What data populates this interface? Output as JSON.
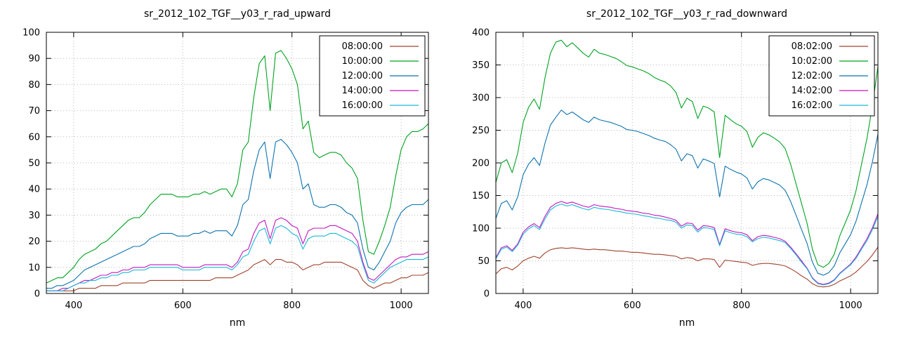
{
  "chart_data": [
    {
      "type": "line",
      "title": "sr_2012_102_TGF__y03_r_rad_upward",
      "xlabel": "nm",
      "xlim": [
        350,
        1050
      ],
      "xticks": [
        400,
        600,
        800,
        1000
      ],
      "ylim": [
        0,
        100
      ],
      "yticks": [
        0,
        10,
        20,
        30,
        40,
        50,
        60,
        70,
        80,
        90,
        100
      ],
      "grid": true,
      "legend_position": "top-right",
      "x": [
        350,
        360,
        370,
        380,
        390,
        400,
        410,
        420,
        430,
        440,
        450,
        460,
        470,
        480,
        490,
        500,
        510,
        520,
        530,
        540,
        550,
        560,
        570,
        580,
        590,
        600,
        610,
        620,
        630,
        640,
        650,
        660,
        670,
        680,
        690,
        700,
        710,
        720,
        730,
        740,
        750,
        760,
        770,
        780,
        790,
        800,
        810,
        820,
        830,
        840,
        850,
        860,
        870,
        880,
        890,
        900,
        910,
        920,
        930,
        940,
        950,
        960,
        970,
        980,
        990,
        1000,
        1010,
        1020,
        1030,
        1040,
        1050
      ],
      "series": [
        {
          "name": "08:00:00",
          "color": "#a0432d",
          "values": [
            1,
            1,
            1,
            1,
            1,
            1,
            2,
            2,
            2,
            2,
            3,
            3,
            3,
            3,
            4,
            4,
            4,
            4,
            4,
            5,
            5,
            5,
            5,
            5,
            5,
            5,
            5,
            5,
            5,
            5,
            5,
            6,
            6,
            6,
            6,
            7,
            8,
            9,
            11,
            12,
            13,
            11,
            13,
            13,
            12,
            12,
            11,
            9,
            10,
            11,
            11,
            12,
            12,
            12,
            12,
            11,
            10,
            9,
            5,
            3,
            2,
            3,
            4,
            4,
            5,
            6,
            6,
            7,
            7,
            7,
            8
          ]
        },
        {
          "name": "10:00:00",
          "color": "#00a321",
          "values": [
            4,
            5,
            6,
            6,
            8,
            10,
            13,
            15,
            16,
            17,
            19,
            20,
            22,
            24,
            26,
            28,
            29,
            29,
            31,
            34,
            36,
            38,
            38,
            38,
            37,
            37,
            37,
            38,
            38,
            39,
            38,
            39,
            40,
            40,
            37,
            42,
            55,
            58,
            75,
            88,
            91,
            70,
            92,
            93,
            90,
            86,
            80,
            63,
            66,
            54,
            52,
            53,
            54,
            54,
            53,
            50,
            48,
            44,
            28,
            16,
            15,
            20,
            26,
            33,
            45,
            55,
            60,
            62,
            62,
            63,
            65
          ]
        },
        {
          "name": "12:00:00",
          "color": "#0d73ad",
          "values": [
            2,
            2,
            3,
            3,
            4,
            5,
            7,
            9,
            10,
            11,
            12,
            13,
            14,
            15,
            16,
            17,
            18,
            18,
            19,
            21,
            22,
            23,
            23,
            23,
            22,
            22,
            22,
            23,
            23,
            24,
            23,
            24,
            24,
            24,
            22,
            26,
            34,
            36,
            47,
            55,
            58,
            44,
            58,
            59,
            57,
            54,
            50,
            40,
            42,
            34,
            33,
            33,
            34,
            34,
            33,
            31,
            30,
            27,
            17,
            10,
            9,
            12,
            16,
            20,
            27,
            31,
            33,
            34,
            34,
            34,
            36
          ]
        },
        {
          "name": "14:00:00",
          "color": "#bf18bf",
          "values": [
            1,
            1,
            1,
            2,
            2,
            3,
            4,
            5,
            5,
            6,
            7,
            7,
            8,
            8,
            9,
            9,
            10,
            10,
            10,
            11,
            11,
            11,
            11,
            11,
            11,
            10,
            10,
            10,
            10,
            11,
            11,
            11,
            11,
            11,
            10,
            12,
            16,
            17,
            23,
            27,
            28,
            21,
            28,
            29,
            28,
            26,
            25,
            19,
            24,
            25,
            25,
            25,
            26,
            26,
            25,
            24,
            23,
            20,
            12,
            6,
            5,
            7,
            9,
            11,
            13,
            14,
            14,
            15,
            15,
            15,
            16
          ]
        },
        {
          "name": "16:00:00",
          "color": "#1ab6d8",
          "values": [
            1,
            1,
            1,
            1,
            2,
            3,
            4,
            4,
            5,
            5,
            6,
            6,
            7,
            7,
            8,
            8,
            9,
            9,
            9,
            10,
            10,
            10,
            10,
            10,
            10,
            9,
            9,
            9,
            9,
            10,
            10,
            10,
            10,
            10,
            9,
            11,
            14,
            15,
            20,
            24,
            25,
            19,
            25,
            26,
            25,
            23,
            22,
            17,
            21,
            22,
            22,
            22,
            23,
            23,
            22,
            21,
            20,
            18,
            11,
            5,
            4,
            6,
            8,
            10,
            11,
            12,
            13,
            13,
            13,
            13,
            14
          ]
        }
      ]
    },
    {
      "type": "line",
      "title": "sr_2012_102_TGF__y03_r_rad_downward",
      "xlabel": "nm",
      "xlim": [
        350,
        1050
      ],
      "xticks": [
        400,
        600,
        800,
        1000
      ],
      "ylim": [
        0,
        400
      ],
      "yticks": [
        0,
        50,
        100,
        150,
        200,
        250,
        300,
        350,
        400
      ],
      "grid": true,
      "legend_position": "top-right",
      "x": [
        350,
        360,
        370,
        380,
        390,
        400,
        410,
        420,
        430,
        440,
        450,
        460,
        470,
        480,
        490,
        500,
        510,
        520,
        530,
        540,
        550,
        560,
        570,
        580,
        590,
        600,
        610,
        620,
        630,
        640,
        650,
        660,
        670,
        680,
        690,
        700,
        710,
        720,
        730,
        740,
        750,
        760,
        770,
        780,
        790,
        800,
        810,
        820,
        830,
        840,
        850,
        860,
        870,
        880,
        890,
        900,
        910,
        920,
        930,
        940,
        950,
        960,
        970,
        980,
        990,
        1000,
        1010,
        1020,
        1030,
        1040,
        1050
      ],
      "series": [
        {
          "name": "08:02:00",
          "color": "#a0432d",
          "values": [
            30,
            38,
            40,
            36,
            42,
            50,
            54,
            57,
            54,
            62,
            67,
            69,
            70,
            69,
            70,
            69,
            68,
            67,
            68,
            67,
            67,
            66,
            65,
            65,
            64,
            63,
            63,
            62,
            61,
            60,
            60,
            59,
            58,
            57,
            53,
            55,
            54,
            50,
            53,
            53,
            52,
            40,
            51,
            50,
            49,
            48,
            47,
            43,
            45,
            46,
            46,
            45,
            44,
            42,
            38,
            33,
            27,
            22,
            15,
            11,
            10,
            11,
            14,
            19,
            23,
            27,
            33,
            41,
            49,
            59,
            71
          ]
        },
        {
          "name": "10:02:00",
          "color": "#00a321",
          "values": [
            170,
            200,
            205,
            185,
            215,
            262,
            285,
            298,
            282,
            330,
            368,
            385,
            388,
            378,
            384,
            376,
            368,
            362,
            374,
            368,
            366,
            363,
            360,
            355,
            349,
            347,
            344,
            341,
            337,
            331,
            327,
            324,
            318,
            308,
            284,
            299,
            294,
            268,
            287,
            284,
            278,
            208,
            273,
            266,
            260,
            256,
            248,
            224,
            239,
            246,
            243,
            238,
            232,
            222,
            198,
            168,
            138,
            108,
            68,
            44,
            40,
            46,
            60,
            88,
            108,
            128,
            158,
            198,
            238,
            288,
            348
          ]
        },
        {
          "name": "12:02:00",
          "color": "#0d73ad",
          "values": [
            115,
            138,
            142,
            128,
            148,
            182,
            198,
            208,
            196,
            230,
            258,
            270,
            281,
            274,
            278,
            272,
            266,
            262,
            270,
            266,
            264,
            262,
            259,
            256,
            251,
            250,
            248,
            245,
            242,
            238,
            235,
            233,
            228,
            221,
            203,
            214,
            211,
            192,
            206,
            203,
            199,
            148,
            195,
            190,
            186,
            183,
            177,
            160,
            171,
            176,
            174,
            170,
            166,
            158,
            141,
            120,
            98,
            77,
            48,
            31,
            28,
            32,
            42,
            62,
            76,
            90,
            111,
            139,
            167,
            202,
            244
          ]
        },
        {
          "name": "14:02:00",
          "color": "#bf18bf",
          "values": [
            55,
            70,
            73,
            66,
            76,
            94,
            102,
            107,
            101,
            118,
            132,
            138,
            141,
            138,
            140,
            137,
            134,
            132,
            136,
            134,
            133,
            132,
            130,
            129,
            127,
            126,
            125,
            123,
            122,
            120,
            119,
            117,
            115,
            112,
            103,
            108,
            107,
            97,
            104,
            103,
            101,
            75,
            99,
            96,
            94,
            93,
            90,
            81,
            87,
            89,
            88,
            86,
            84,
            80,
            71,
            61,
            50,
            39,
            24,
            16,
            14,
            16,
            21,
            31,
            38,
            45,
            56,
            70,
            84,
            101,
            122
          ]
        },
        {
          "name": "16:02:00",
          "color": "#1ab6d8",
          "values": [
            53,
            68,
            71,
            64,
            74,
            91,
            99,
            104,
            98,
            114,
            128,
            134,
            137,
            134,
            136,
            133,
            130,
            128,
            132,
            130,
            129,
            128,
            126,
            125,
            123,
            122,
            121,
            119,
            118,
            116,
            115,
            113,
            112,
            109,
            100,
            105,
            104,
            94,
            101,
            100,
            98,
            73,
            96,
            93,
            91,
            90,
            87,
            79,
            84,
            86,
            85,
            83,
            81,
            78,
            69,
            59,
            48,
            38,
            23,
            15,
            13,
            15,
            20,
            30,
            37,
            44,
            54,
            68,
            81,
            98,
            118
          ]
        }
      ]
    }
  ]
}
